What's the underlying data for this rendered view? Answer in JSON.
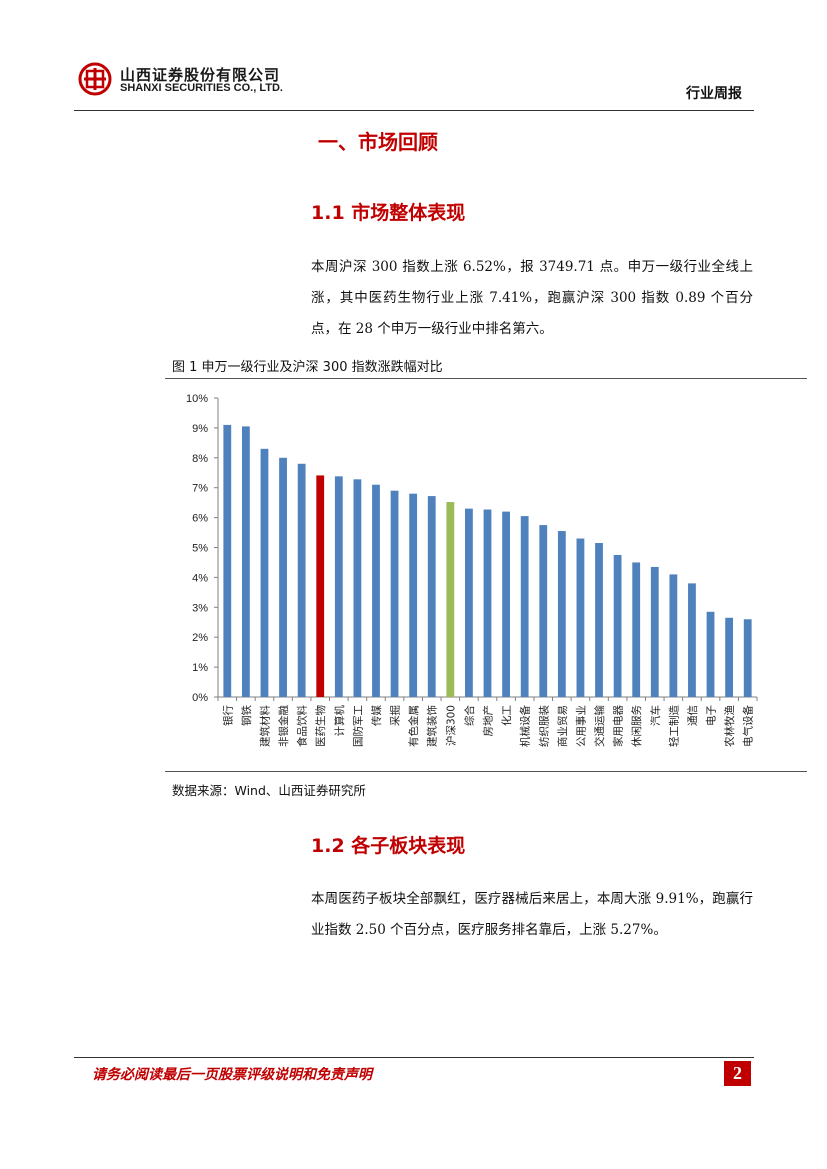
{
  "header": {
    "company_cn": "山西证券股份有限公司",
    "company_en": "SHANXI SECURITIES CO., LTD.",
    "report_type": "行业周报"
  },
  "section": {
    "title": "一、市场回顾",
    "sub1": {
      "heading": "1.1 市场整体表现",
      "paragraph": "本周沪深 300 指数上涨 6.52%，报 3749.71 点。申万一级行业全线上涨，其中医药生物行业上涨 7.41%，跑赢沪深 300 指数 0.89 个百分点，在 28 个申万一级行业中排名第六。"
    },
    "sub2": {
      "heading": "1.2 各子板块表现",
      "paragraph": "本周医药子板块全部飘红，医疗器械后来居上，本周大涨 9.91%，跑赢行业指数 2.50 个百分点，医疗服务排名靠后，上涨 5.27%。"
    }
  },
  "figure": {
    "caption": "图 1  申万一级行业及沪深 300 指数涨跌幅对比",
    "source": "数据来源：Wind、山西证券研究所"
  },
  "chart_data": {
    "type": "bar",
    "title": "",
    "xlabel": "",
    "ylabel": "",
    "ylim": [
      0,
      10
    ],
    "ytick_labels": [
      "0%",
      "1%",
      "2%",
      "3%",
      "4%",
      "5%",
      "6%",
      "7%",
      "8%",
      "9%",
      "10%"
    ],
    "categories": [
      "银行",
      "钢铁",
      "建筑材料",
      "非银金融",
      "食品饮料",
      "医药生物",
      "计算机",
      "国防军工",
      "传媒",
      "采掘",
      "有色金属",
      "建筑装饰",
      "沪深300",
      "综合",
      "房地产",
      "化工",
      "机械设备",
      "纺织服装",
      "商业贸易",
      "公用事业",
      "交通运输",
      "家用电器",
      "休闲服务",
      "汽车",
      "轻工制造",
      "通信",
      "电子",
      "农林牧渔",
      "电气设备"
    ],
    "values": [
      9.1,
      9.05,
      8.3,
      8.0,
      7.8,
      7.41,
      7.38,
      7.28,
      7.1,
      6.9,
      6.8,
      6.72,
      6.52,
      6.3,
      6.27,
      6.2,
      6.05,
      5.75,
      5.55,
      5.3,
      5.15,
      4.75,
      4.5,
      4.35,
      4.1,
      3.8,
      2.85,
      2.65,
      2.6
    ],
    "colors": {
      "default": "#4f81bd",
      "highlight": "#c00000",
      "benchmark": "#9bbb59"
    },
    "highlight_category": "医药生物",
    "benchmark_category": "沪深300",
    "grid": false,
    "legend": "none"
  },
  "footer": {
    "note": "请务必阅读最后一页股票评级说明和免责声明",
    "page_number": "2"
  }
}
